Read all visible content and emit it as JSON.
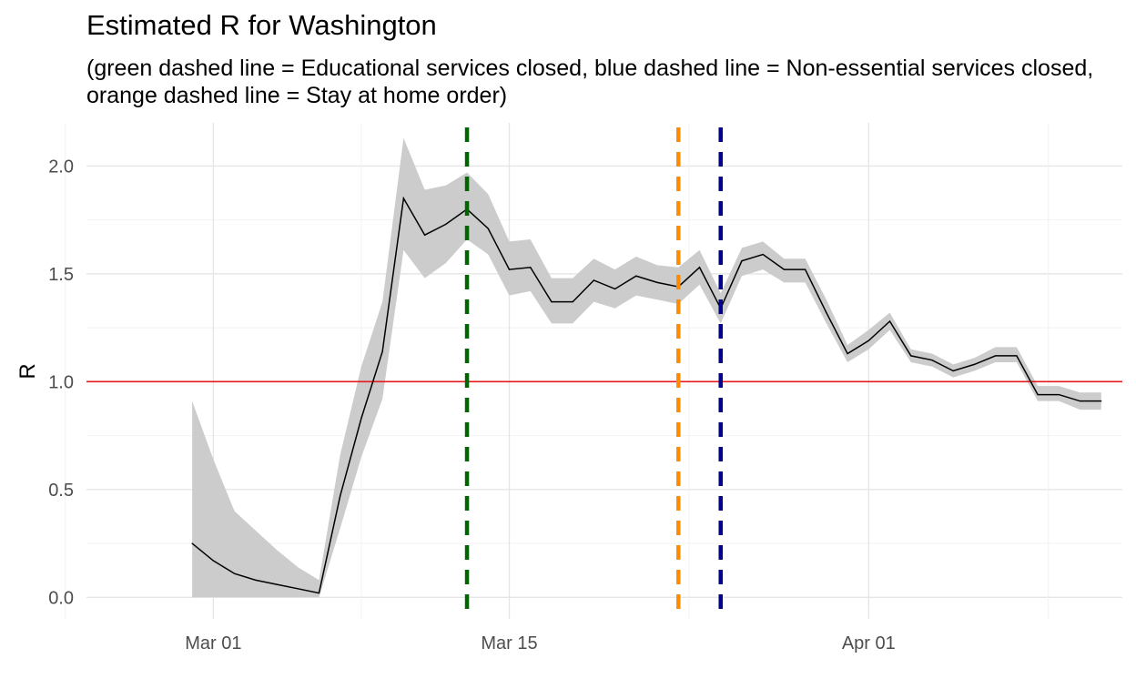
{
  "chart_data": {
    "type": "line",
    "title": "Estimated R for Washington",
    "subtitle": "(green dashed line = Educational services closed, blue dashed line = Non-essential services closed,\norange dashed line = Stay at home order)",
    "xlabel": "",
    "ylabel": "R",
    "x_ticks": [
      "Mar 01",
      "Mar 15",
      "Apr 01"
    ],
    "y_ticks": [
      "0.0",
      "0.5",
      "1.0",
      "1.5",
      "2.0"
    ],
    "ylim": [
      -0.1,
      2.2
    ],
    "xlim": [
      "2020-02-24",
      "2020-04-13"
    ],
    "grid": true,
    "reference_line": {
      "y": 1.0,
      "color": "#e41a1c"
    },
    "vlines": [
      {
        "x": "2020-03-13",
        "color": "#006400",
        "style": "dashed"
      },
      {
        "x": "2020-03-23",
        "color": "#ff8c00",
        "style": "dashed"
      },
      {
        "x": "2020-03-25",
        "color": "#00008b",
        "style": "dashed"
      }
    ],
    "series": [
      {
        "x": [
          "2020-02-29",
          "2020-03-01",
          "2020-03-02",
          "2020-03-03",
          "2020-03-04",
          "2020-03-05",
          "2020-03-06",
          "2020-03-07",
          "2020-03-08",
          "2020-03-09",
          "2020-03-10",
          "2020-03-11",
          "2020-03-12",
          "2020-03-13",
          "2020-03-14",
          "2020-03-15",
          "2020-03-16",
          "2020-03-17",
          "2020-03-18",
          "2020-03-19",
          "2020-03-20",
          "2020-03-21",
          "2020-03-22",
          "2020-03-23",
          "2020-03-24",
          "2020-03-25",
          "2020-03-26",
          "2020-03-27",
          "2020-03-28",
          "2020-03-29",
          "2020-03-30",
          "2020-03-31",
          "2020-04-01",
          "2020-04-02",
          "2020-04-03",
          "2020-04-04",
          "2020-04-05",
          "2020-04-06",
          "2020-04-07",
          "2020-04-08",
          "2020-04-09",
          "2020-04-10",
          "2020-04-11",
          "2020-04-12"
        ],
        "values": [
          0.25,
          0.17,
          0.11,
          0.08,
          0.06,
          0.04,
          0.02,
          0.47,
          0.83,
          1.14,
          1.85,
          1.68,
          1.73,
          1.8,
          1.71,
          1.52,
          1.53,
          1.37,
          1.37,
          1.47,
          1.43,
          1.49,
          1.46,
          1.44,
          1.53,
          1.34,
          1.56,
          1.59,
          1.52,
          1.52,
          1.32,
          1.13,
          1.19,
          1.28,
          1.12,
          1.1,
          1.05,
          1.08,
          1.12,
          1.12,
          0.94,
          0.94,
          0.91,
          0.91
        ],
        "lower": [
          0.0,
          0.0,
          0.0,
          0.0,
          0.0,
          0.0,
          0.0,
          0.32,
          0.65,
          0.92,
          1.61,
          1.48,
          1.55,
          1.66,
          1.59,
          1.4,
          1.42,
          1.27,
          1.27,
          1.37,
          1.34,
          1.4,
          1.38,
          1.36,
          1.45,
          1.27,
          1.49,
          1.52,
          1.46,
          1.46,
          1.27,
          1.09,
          1.15,
          1.24,
          1.09,
          1.07,
          1.02,
          1.05,
          1.09,
          1.09,
          0.91,
          0.91,
          0.87,
          0.87
        ],
        "upper": [
          0.91,
          0.64,
          0.4,
          0.31,
          0.22,
          0.14,
          0.08,
          0.66,
          1.07,
          1.37,
          2.13,
          1.89,
          1.91,
          1.97,
          1.87,
          1.65,
          1.66,
          1.48,
          1.48,
          1.57,
          1.52,
          1.58,
          1.54,
          1.53,
          1.61,
          1.41,
          1.62,
          1.65,
          1.57,
          1.57,
          1.38,
          1.17,
          1.24,
          1.32,
          1.15,
          1.13,
          1.08,
          1.11,
          1.16,
          1.16,
          0.98,
          0.98,
          0.95,
          0.95
        ],
        "line_color": "#000000",
        "band_color": "#cccccc"
      }
    ]
  }
}
